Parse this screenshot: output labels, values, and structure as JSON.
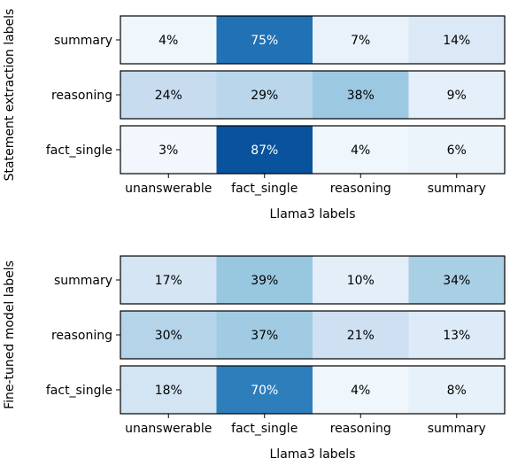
{
  "chart_data": [
    {
      "type": "heatmap",
      "ylabel": "Statement extraction labels",
      "xlabel": "Llama3 labels",
      "x_categories": [
        "unanswerable",
        "fact_single",
        "reasoning",
        "summary"
      ],
      "y_categories": [
        "summary",
        "reasoning",
        "fact_single"
      ],
      "value_format": "percent",
      "values": [
        [
          4,
          75,
          7,
          14
        ],
        [
          24,
          29,
          38,
          9
        ],
        [
          3,
          87,
          4,
          6
        ]
      ],
      "colormap": "Blues",
      "vmin": 0,
      "vmax": 100,
      "grid": false
    },
    {
      "type": "heatmap",
      "ylabel": "Fine-tuned model labels",
      "xlabel": "Llama3 labels",
      "x_categories": [
        "unanswerable",
        "fact_single",
        "reasoning",
        "summary"
      ],
      "y_categories": [
        "summary",
        "reasoning",
        "fact_single"
      ],
      "value_format": "percent",
      "values": [
        [
          17,
          39,
          10,
          34
        ],
        [
          30,
          37,
          21,
          13
        ],
        [
          18,
          70,
          4,
          8
        ]
      ],
      "colormap": "Blues",
      "vmin": 0,
      "vmax": 100,
      "grid": false
    }
  ]
}
